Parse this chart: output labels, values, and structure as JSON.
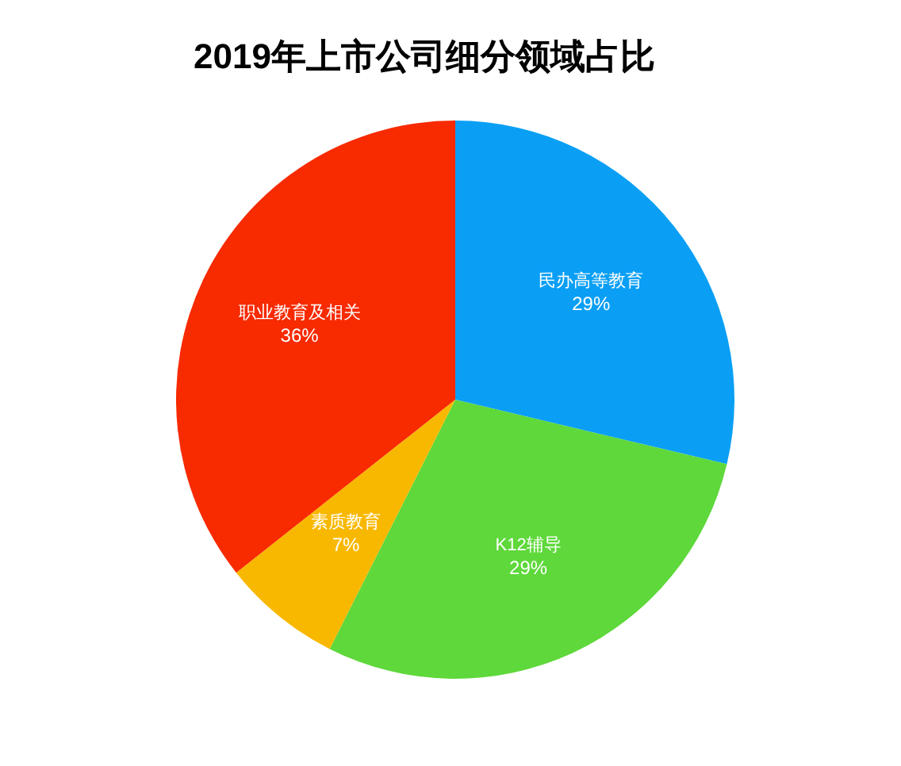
{
  "chart_data": {
    "type": "pie",
    "title": "2019年上市公司细分领域占比",
    "categories": [
      "民办高等教育",
      "K12辅导",
      "素质教育",
      "职业教育及相关"
    ],
    "values": [
      29,
      29,
      7,
      36
    ],
    "value_labels": [
      "29%",
      "29%",
      "7%",
      "36%"
    ],
    "colors": [
      "#0a9ff5",
      "#5ed83a",
      "#f9b800",
      "#f72a00"
    ],
    "legend": false
  }
}
